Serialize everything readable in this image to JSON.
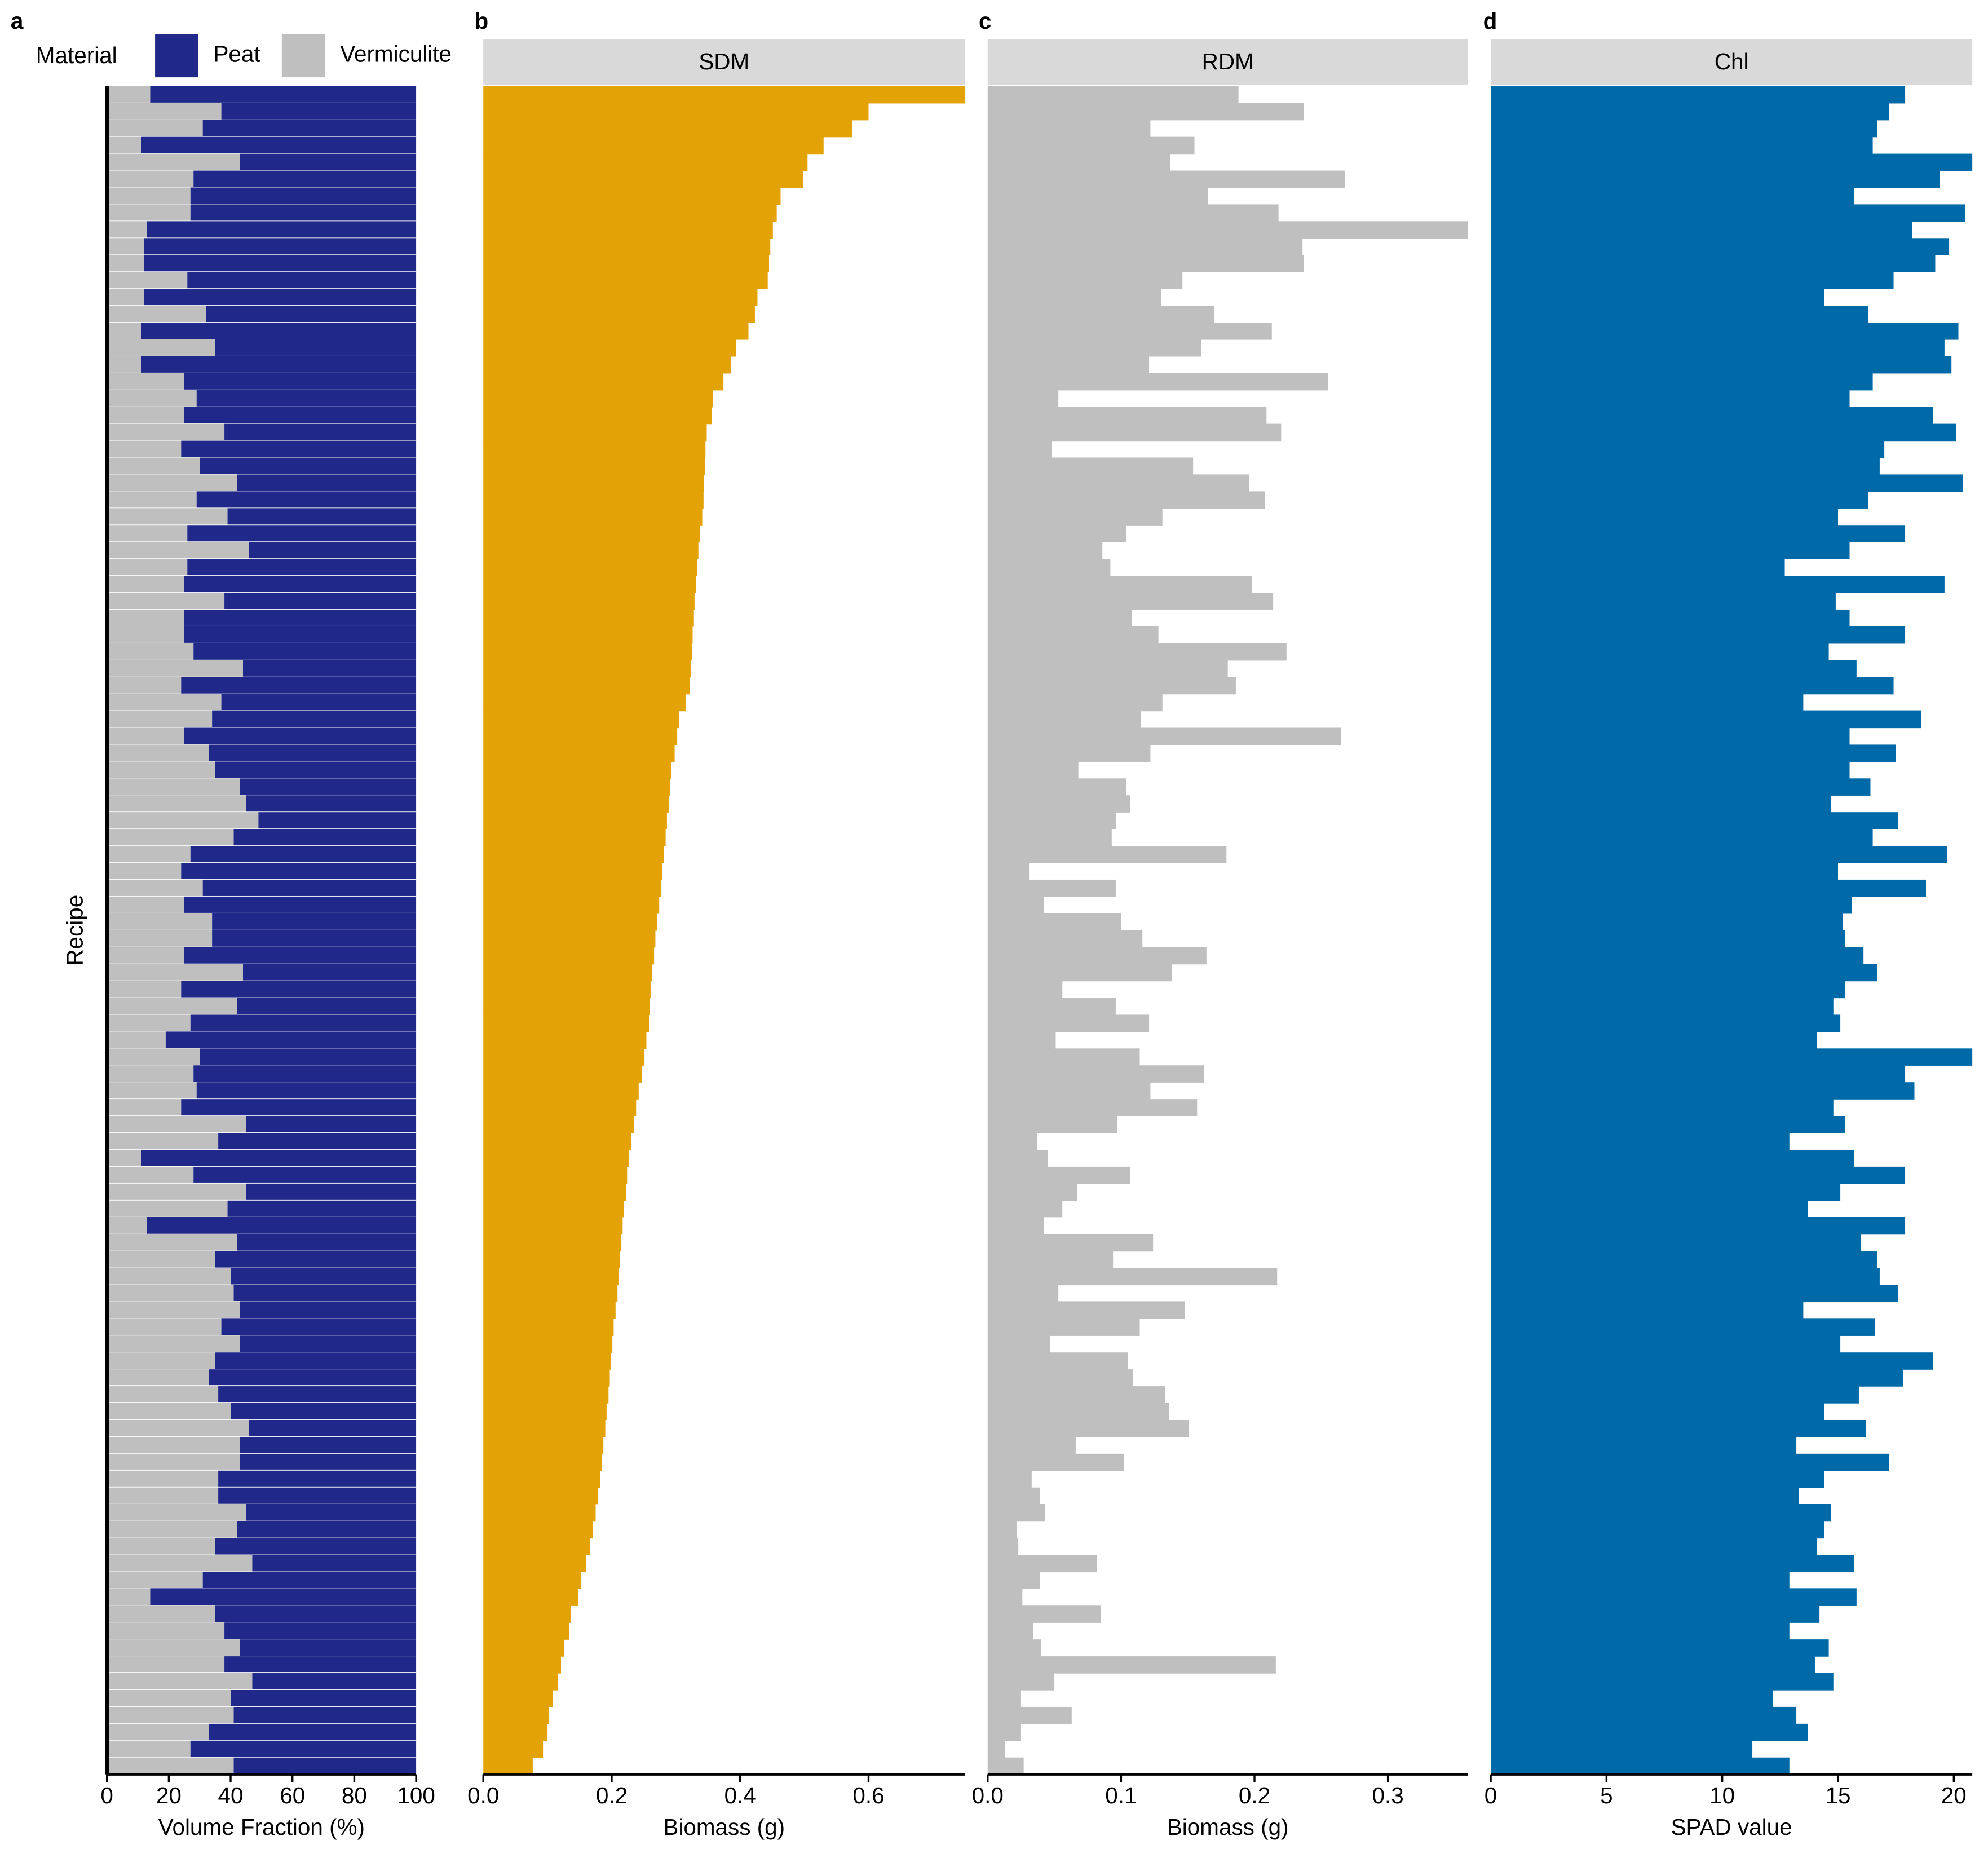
{
  "chart_data": [
    {
      "type": "stacked_bar",
      "orientation": "horizontal",
      "panel_label": "a",
      "legend_title": "Material",
      "ylabel": "Recipe",
      "xlabel": "Volume Fraction (%)",
      "series": [
        {
          "name": "Peat",
          "color": "#20298a",
          "values": [
            86,
            63,
            69,
            89,
            57,
            72,
            73,
            73,
            87,
            88,
            88,
            74,
            88,
            68,
            89,
            65,
            89,
            75,
            71,
            75,
            62,
            76,
            70,
            58,
            71,
            61,
            74,
            54,
            74,
            75,
            62,
            75,
            75,
            72,
            56,
            76,
            63,
            66,
            75,
            67,
            65,
            57,
            55,
            51,
            59,
            73,
            76,
            69,
            75,
            66,
            66,
            75,
            56,
            76,
            58,
            73,
            81,
            70,
            72,
            71,
            76,
            55,
            64,
            89,
            72,
            55,
            61,
            87,
            58,
            65,
            60,
            59,
            57,
            63,
            57,
            65,
            67,
            64,
            60,
            54,
            57,
            57,
            64,
            64,
            55,
            58,
            65,
            53,
            69,
            86,
            65,
            62,
            57,
            62,
            53,
            60,
            59,
            67,
            73,
            59
          ]
        },
        {
          "name": "Vermiculite",
          "color": "#c0bfc0",
          "values": [
            14,
            37,
            31,
            11,
            43,
            28,
            27,
            27,
            13,
            12,
            12,
            26,
            12,
            32,
            11,
            35,
            11,
            25,
            29,
            25,
            38,
            24,
            30,
            42,
            29,
            39,
            26,
            46,
            26,
            25,
            38,
            25,
            25,
            28,
            44,
            24,
            37,
            34,
            25,
            33,
            35,
            43,
            45,
            49,
            41,
            27,
            24,
            31,
            25,
            34,
            34,
            25,
            44,
            24,
            42,
            27,
            19,
            30,
            28,
            29,
            24,
            45,
            36,
            11,
            28,
            45,
            39,
            13,
            42,
            35,
            40,
            41,
            43,
            37,
            43,
            35,
            33,
            36,
            40,
            46,
            43,
            43,
            36,
            36,
            45,
            42,
            35,
            47,
            31,
            14,
            35,
            38,
            43,
            38,
            47,
            40,
            41,
            33,
            27,
            41
          ]
        }
      ],
      "xlim": [
        0,
        100
      ],
      "xticks": [
        0,
        20,
        40,
        60,
        80,
        100
      ]
    },
    {
      "type": "bar",
      "orientation": "horizontal",
      "panel_label": "b",
      "strip": "SDM",
      "xlabel": "Biomass (g)",
      "color": "#e3a205",
      "values": [
        0.75,
        0.6,
        0.575,
        0.53,
        0.505,
        0.498,
        0.463,
        0.457,
        0.451,
        0.447,
        0.445,
        0.443,
        0.427,
        0.423,
        0.413,
        0.394,
        0.386,
        0.374,
        0.358,
        0.356,
        0.348,
        0.346,
        0.345,
        0.344,
        0.343,
        0.341,
        0.337,
        0.335,
        0.333,
        0.331,
        0.329,
        0.328,
        0.326,
        0.325,
        0.323,
        0.322,
        0.315,
        0.305,
        0.302,
        0.298,
        0.293,
        0.291,
        0.289,
        0.286,
        0.284,
        0.281,
        0.279,
        0.277,
        0.274,
        0.271,
        0.268,
        0.266,
        0.263,
        0.261,
        0.259,
        0.258,
        0.254,
        0.251,
        0.247,
        0.242,
        0.238,
        0.235,
        0.23,
        0.227,
        0.224,
        0.222,
        0.219,
        0.217,
        0.215,
        0.213,
        0.211,
        0.209,
        0.206,
        0.203,
        0.201,
        0.199,
        0.197,
        0.195,
        0.192,
        0.19,
        0.187,
        0.185,
        0.182,
        0.179,
        0.175,
        0.171,
        0.166,
        0.16,
        0.152,
        0.148,
        0.136,
        0.134,
        0.126,
        0.121,
        0.116,
        0.108,
        0.102,
        0.1,
        0.093,
        0.077
      ],
      "xlim": [
        0,
        0.75
      ],
      "xticks": [
        {
          "value": 0,
          "label": "0.0"
        },
        0.2,
        0.4,
        0.6
      ]
    },
    {
      "type": "bar",
      "orientation": "horizontal",
      "panel_label": "c",
      "strip": "RDM",
      "xlabel": "Biomass (g)",
      "color": "#c0bfc0",
      "values": [
        0.188,
        0.237,
        0.122,
        0.155,
        0.137,
        0.268,
        0.165,
        0.218,
        0.36,
        0.236,
        0.237,
        0.146,
        0.13,
        0.17,
        0.213,
        0.16,
        0.121,
        0.255,
        0.053,
        0.209,
        0.22,
        0.048,
        0.154,
        0.196,
        0.208,
        0.131,
        0.104,
        0.086,
        0.092,
        0.198,
        0.214,
        0.108,
        0.128,
        0.224,
        0.18,
        0.186,
        0.131,
        0.115,
        0.265,
        0.122,
        0.068,
        0.104,
        0.107,
        0.096,
        0.093,
        0.179,
        0.031,
        0.096,
        0.042,
        0.1,
        0.116,
        0.164,
        0.138,
        0.056,
        0.096,
        0.121,
        0.051,
        0.114,
        0.162,
        0.122,
        0.157,
        0.097,
        0.037,
        0.045,
        0.107,
        0.067,
        0.056,
        0.042,
        0.124,
        0.094,
        0.217,
        0.053,
        0.148,
        0.114,
        0.047,
        0.105,
        0.109,
        0.133,
        0.136,
        0.151,
        0.066,
        0.102,
        0.033,
        0.039,
        0.043,
        0.022,
        0.023,
        0.082,
        0.039,
        0.026,
        0.085,
        0.034,
        0.04,
        0.216,
        0.05,
        0.025,
        0.063,
        0.025,
        0.013,
        0.027
      ],
      "xlim": [
        0,
        0.36
      ],
      "xticks": [
        {
          "value": 0,
          "label": "0.0"
        },
        0.1,
        0.2,
        0.3
      ]
    },
    {
      "type": "bar",
      "orientation": "horizontal",
      "panel_label": "d",
      "strip": "Chl",
      "xlabel": "SPAD value",
      "color": "#0069a8",
      "values": [
        17.9,
        17.2,
        16.7,
        16.5,
        20.8,
        19.4,
        15.7,
        20.5,
        18.2,
        19.8,
        19.2,
        17.4,
        14.4,
        16.3,
        20.2,
        19.6,
        19.9,
        16.5,
        15.5,
        19.1,
        20.1,
        17.0,
        16.8,
        20.4,
        16.3,
        15.0,
        17.9,
        15.5,
        12.7,
        19.6,
        14.9,
        15.5,
        17.9,
        14.6,
        15.8,
        17.4,
        13.5,
        18.6,
        15.5,
        17.5,
        15.5,
        16.4,
        14.7,
        17.6,
        16.5,
        19.7,
        15.0,
        18.8,
        15.6,
        15.2,
        15.3,
        16.1,
        16.7,
        15.3,
        14.8,
        15.1,
        14.1,
        20.8,
        17.9,
        18.3,
        14.8,
        15.3,
        12.9,
        15.7,
        17.9,
        15.1,
        13.7,
        17.9,
        16.0,
        16.7,
        16.8,
        17.6,
        13.5,
        16.6,
        15.1,
        19.1,
        17.8,
        15.9,
        14.4,
        16.2,
        13.2,
        17.2,
        14.4,
        13.3,
        14.7,
        14.4,
        14.1,
        15.7,
        12.9,
        15.8,
        14.2,
        12.9,
        14.6,
        14.0,
        14.8,
        12.2,
        13.2,
        13.7,
        11.3,
        12.9
      ],
      "xlim": [
        0,
        20.8
      ],
      "xticks": [
        0,
        5,
        10,
        15,
        20
      ]
    }
  ]
}
